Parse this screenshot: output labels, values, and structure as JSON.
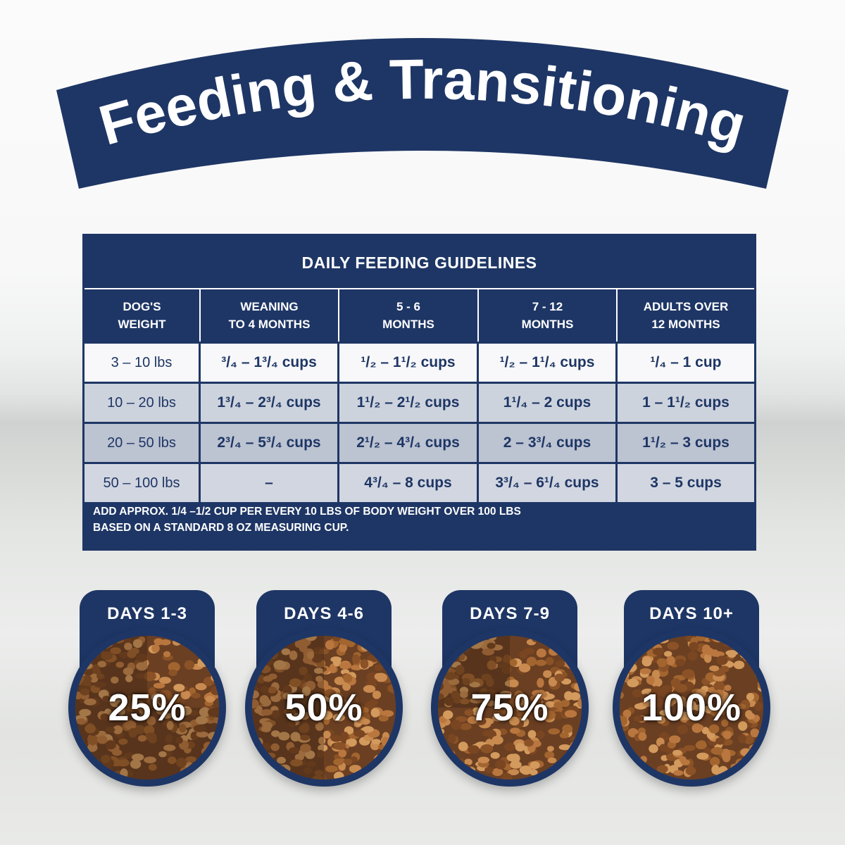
{
  "banner": {
    "title": "Feeding & Transitioning",
    "color": "#1e3665"
  },
  "table": {
    "title": "DAILY FEEDING GUIDELINES",
    "headers": [
      [
        "DOG'S",
        "WEIGHT"
      ],
      [
        "WEANING",
        "TO 4 MONTHS"
      ],
      [
        "5 - 6",
        "MONTHS"
      ],
      [
        "7 - 12",
        "MONTHS"
      ],
      [
        "ADULTS OVER",
        "12 MONTHS"
      ]
    ],
    "rows": [
      [
        "3 – 10 lbs",
        "³/₄ – 1³/₄ cups",
        "¹/₂ – 1¹/₂ cups",
        "¹/₂ – 1¹/₄ cups",
        "¹/₄ – 1 cup"
      ],
      [
        "10 – 20 lbs",
        "1³/₄ – 2³/₄ cups",
        "1¹/₂ – 2¹/₂ cups",
        "1¹/₄ – 2 cups",
        "1 – 1¹/₂ cups"
      ],
      [
        "20 – 50 lbs",
        "2³/₄ – 5³/₄ cups",
        "2¹/₂ – 4³/₄ cups",
        "2 – 3³/₄ cups",
        "1¹/₂ – 3 cups"
      ],
      [
        "50 – 100 lbs",
        "–",
        "4³/₄ – 8 cups",
        "3³/₄ – 6¹/₄ cups",
        "3 – 5 cups"
      ]
    ],
    "note_line1": "ADD APPROX. 1/4 –1/2 CUP PER EVERY 10 LBS OF BODY WEIGHT OVER 100 LBS",
    "note_line2": "BASED ON A STANDARD 8 OZ MEASURING CUP."
  },
  "transition": [
    {
      "label": "DAYS 1-3",
      "percent": "25%",
      "new_food_fraction": 0.25
    },
    {
      "label": "DAYS 4-6",
      "percent": "50%",
      "new_food_fraction": 0.5
    },
    {
      "label": "DAYS 7-9",
      "percent": "75%",
      "new_food_fraction": 0.75
    },
    {
      "label": "DAYS 10+",
      "percent": "100%",
      "new_food_fraction": 1.0
    }
  ]
}
